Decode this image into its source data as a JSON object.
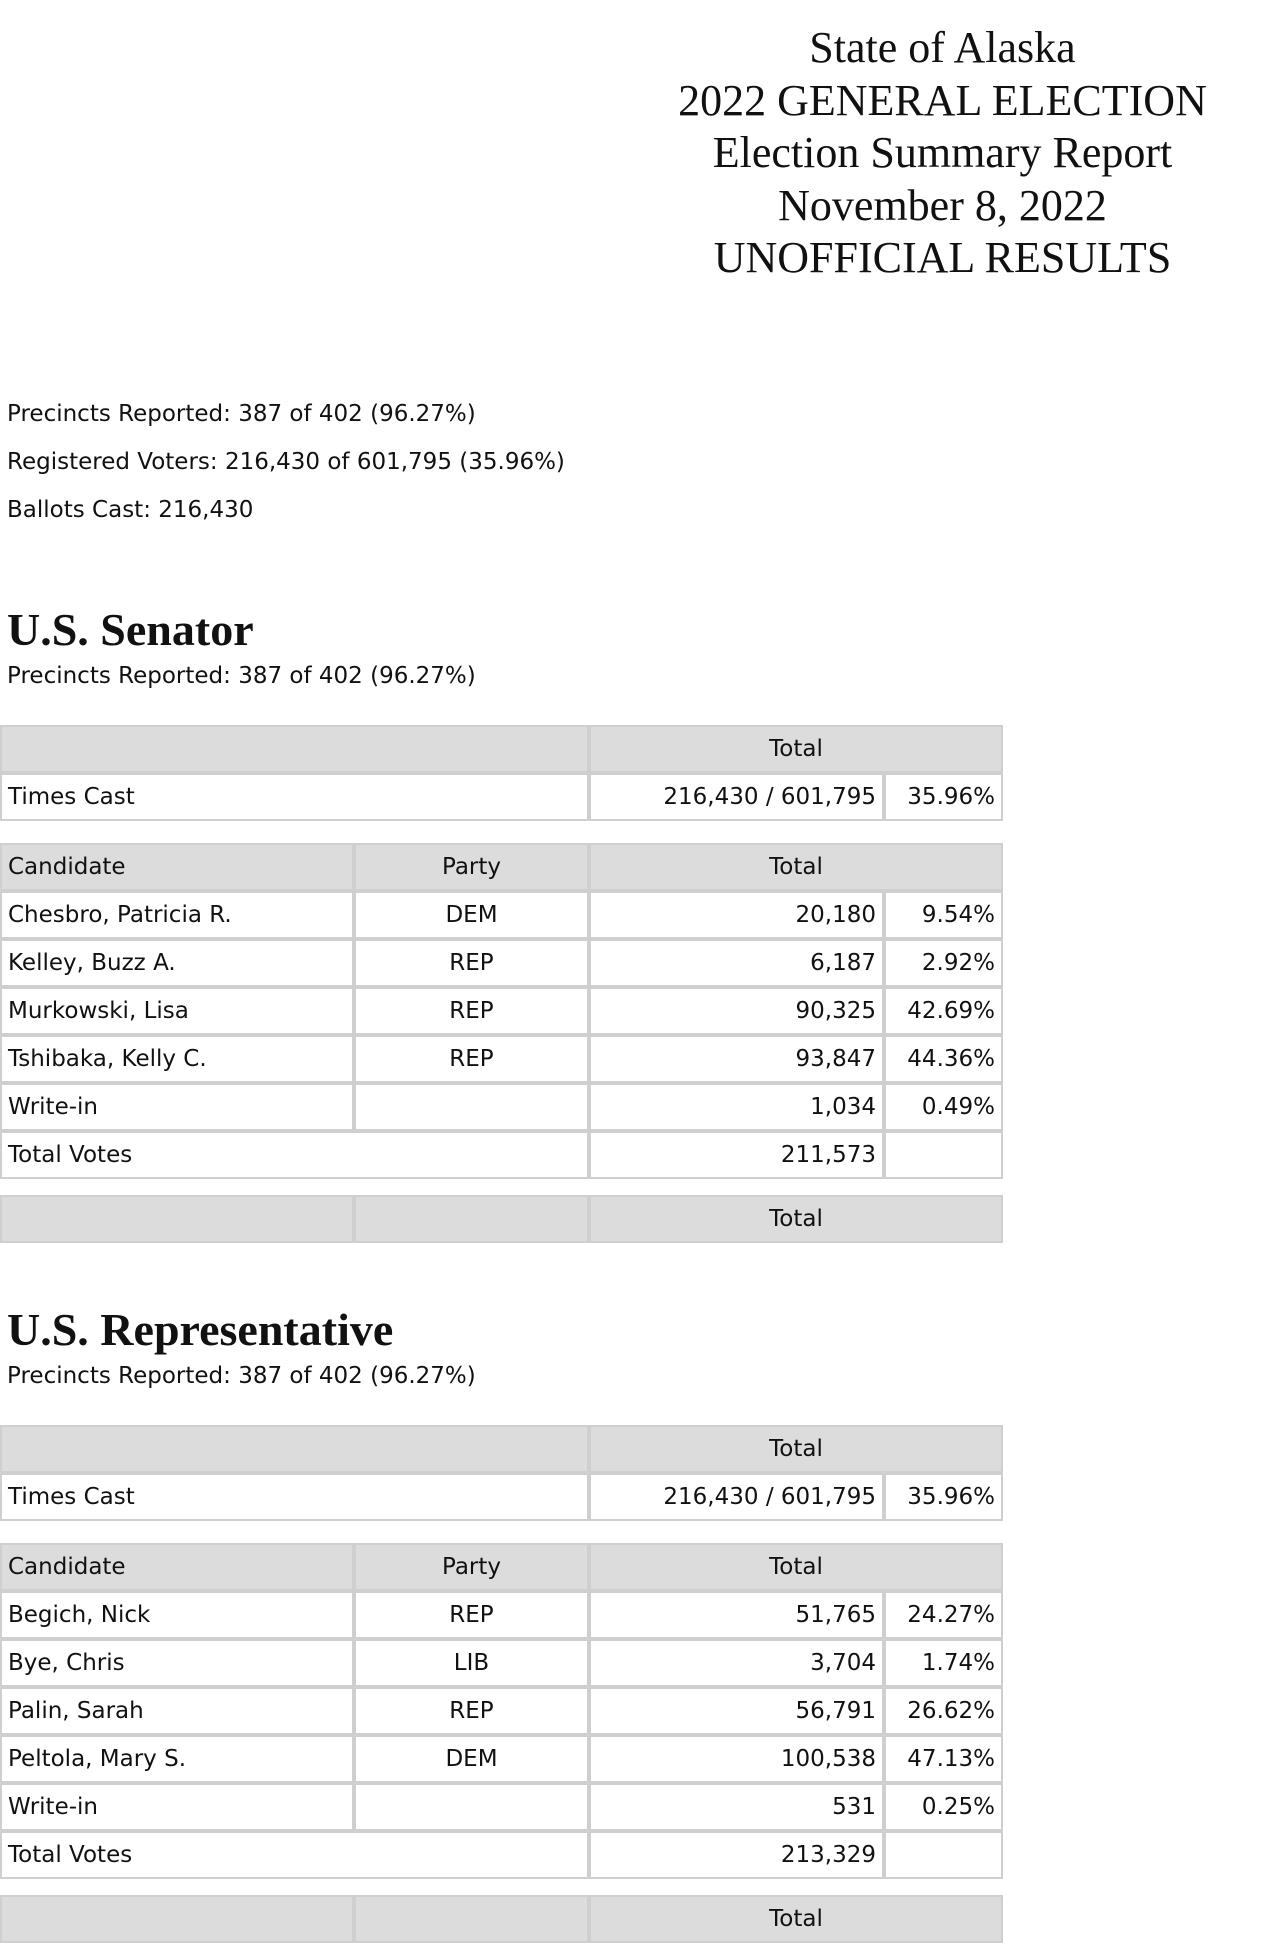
{
  "header": {
    "lines": [
      "State of Alaska",
      "2022 GENERAL ELECTION",
      "Election Summary Report",
      "November 8, 2022",
      "UNOFFICIAL RESULTS"
    ]
  },
  "summary": {
    "precincts": "Precincts Reported: 387 of 402 (96.27%)",
    "registered": "Registered Voters: 216,430 of 601,795 (35.96%)",
    "ballots": "Ballots Cast: 216,430"
  },
  "labels": {
    "total": "Total",
    "times_cast": "Times Cast",
    "candidate": "Candidate",
    "party": "Party",
    "total_votes": "Total Votes"
  },
  "races": [
    {
      "title": "U.S. Senator",
      "precincts": "Precincts Reported: 387 of 402 (96.27%)",
      "times_cast": "216,430 / 601,795",
      "times_cast_pct": "35.96%",
      "candidates": [
        {
          "name": "Chesbro, Patricia R.",
          "party": "DEM",
          "total": "20,180",
          "pct": "9.54%"
        },
        {
          "name": "Kelley, Buzz A.",
          "party": "REP",
          "total": "6,187",
          "pct": "2.92%"
        },
        {
          "name": "Murkowski, Lisa",
          "party": "REP",
          "total": "90,325",
          "pct": "42.69%"
        },
        {
          "name": "Tshibaka, Kelly C.",
          "party": "REP",
          "total": "93,847",
          "pct": "44.36%"
        },
        {
          "name": "Write-in",
          "party": "",
          "total": "1,034",
          "pct": "0.49%"
        }
      ],
      "total_votes": "211,573"
    },
    {
      "title": "U.S. Representative",
      "precincts": "Precincts Reported: 387 of 402 (96.27%)",
      "times_cast": "216,430 / 601,795",
      "times_cast_pct": "35.96%",
      "candidates": [
        {
          "name": "Begich, Nick",
          "party": "REP",
          "total": "51,765",
          "pct": "24.27%"
        },
        {
          "name": "Bye, Chris",
          "party": "LIB",
          "total": "3,704",
          "pct": "1.74%"
        },
        {
          "name": "Palin, Sarah",
          "party": "REP",
          "total": "56,791",
          "pct": "26.62%"
        },
        {
          "name": "Peltola, Mary S.",
          "party": "DEM",
          "total": "100,538",
          "pct": "47.13%"
        },
        {
          "name": "Write-in",
          "party": "",
          "total": "531",
          "pct": "0.25%"
        }
      ],
      "total_votes": "213,329"
    }
  ]
}
